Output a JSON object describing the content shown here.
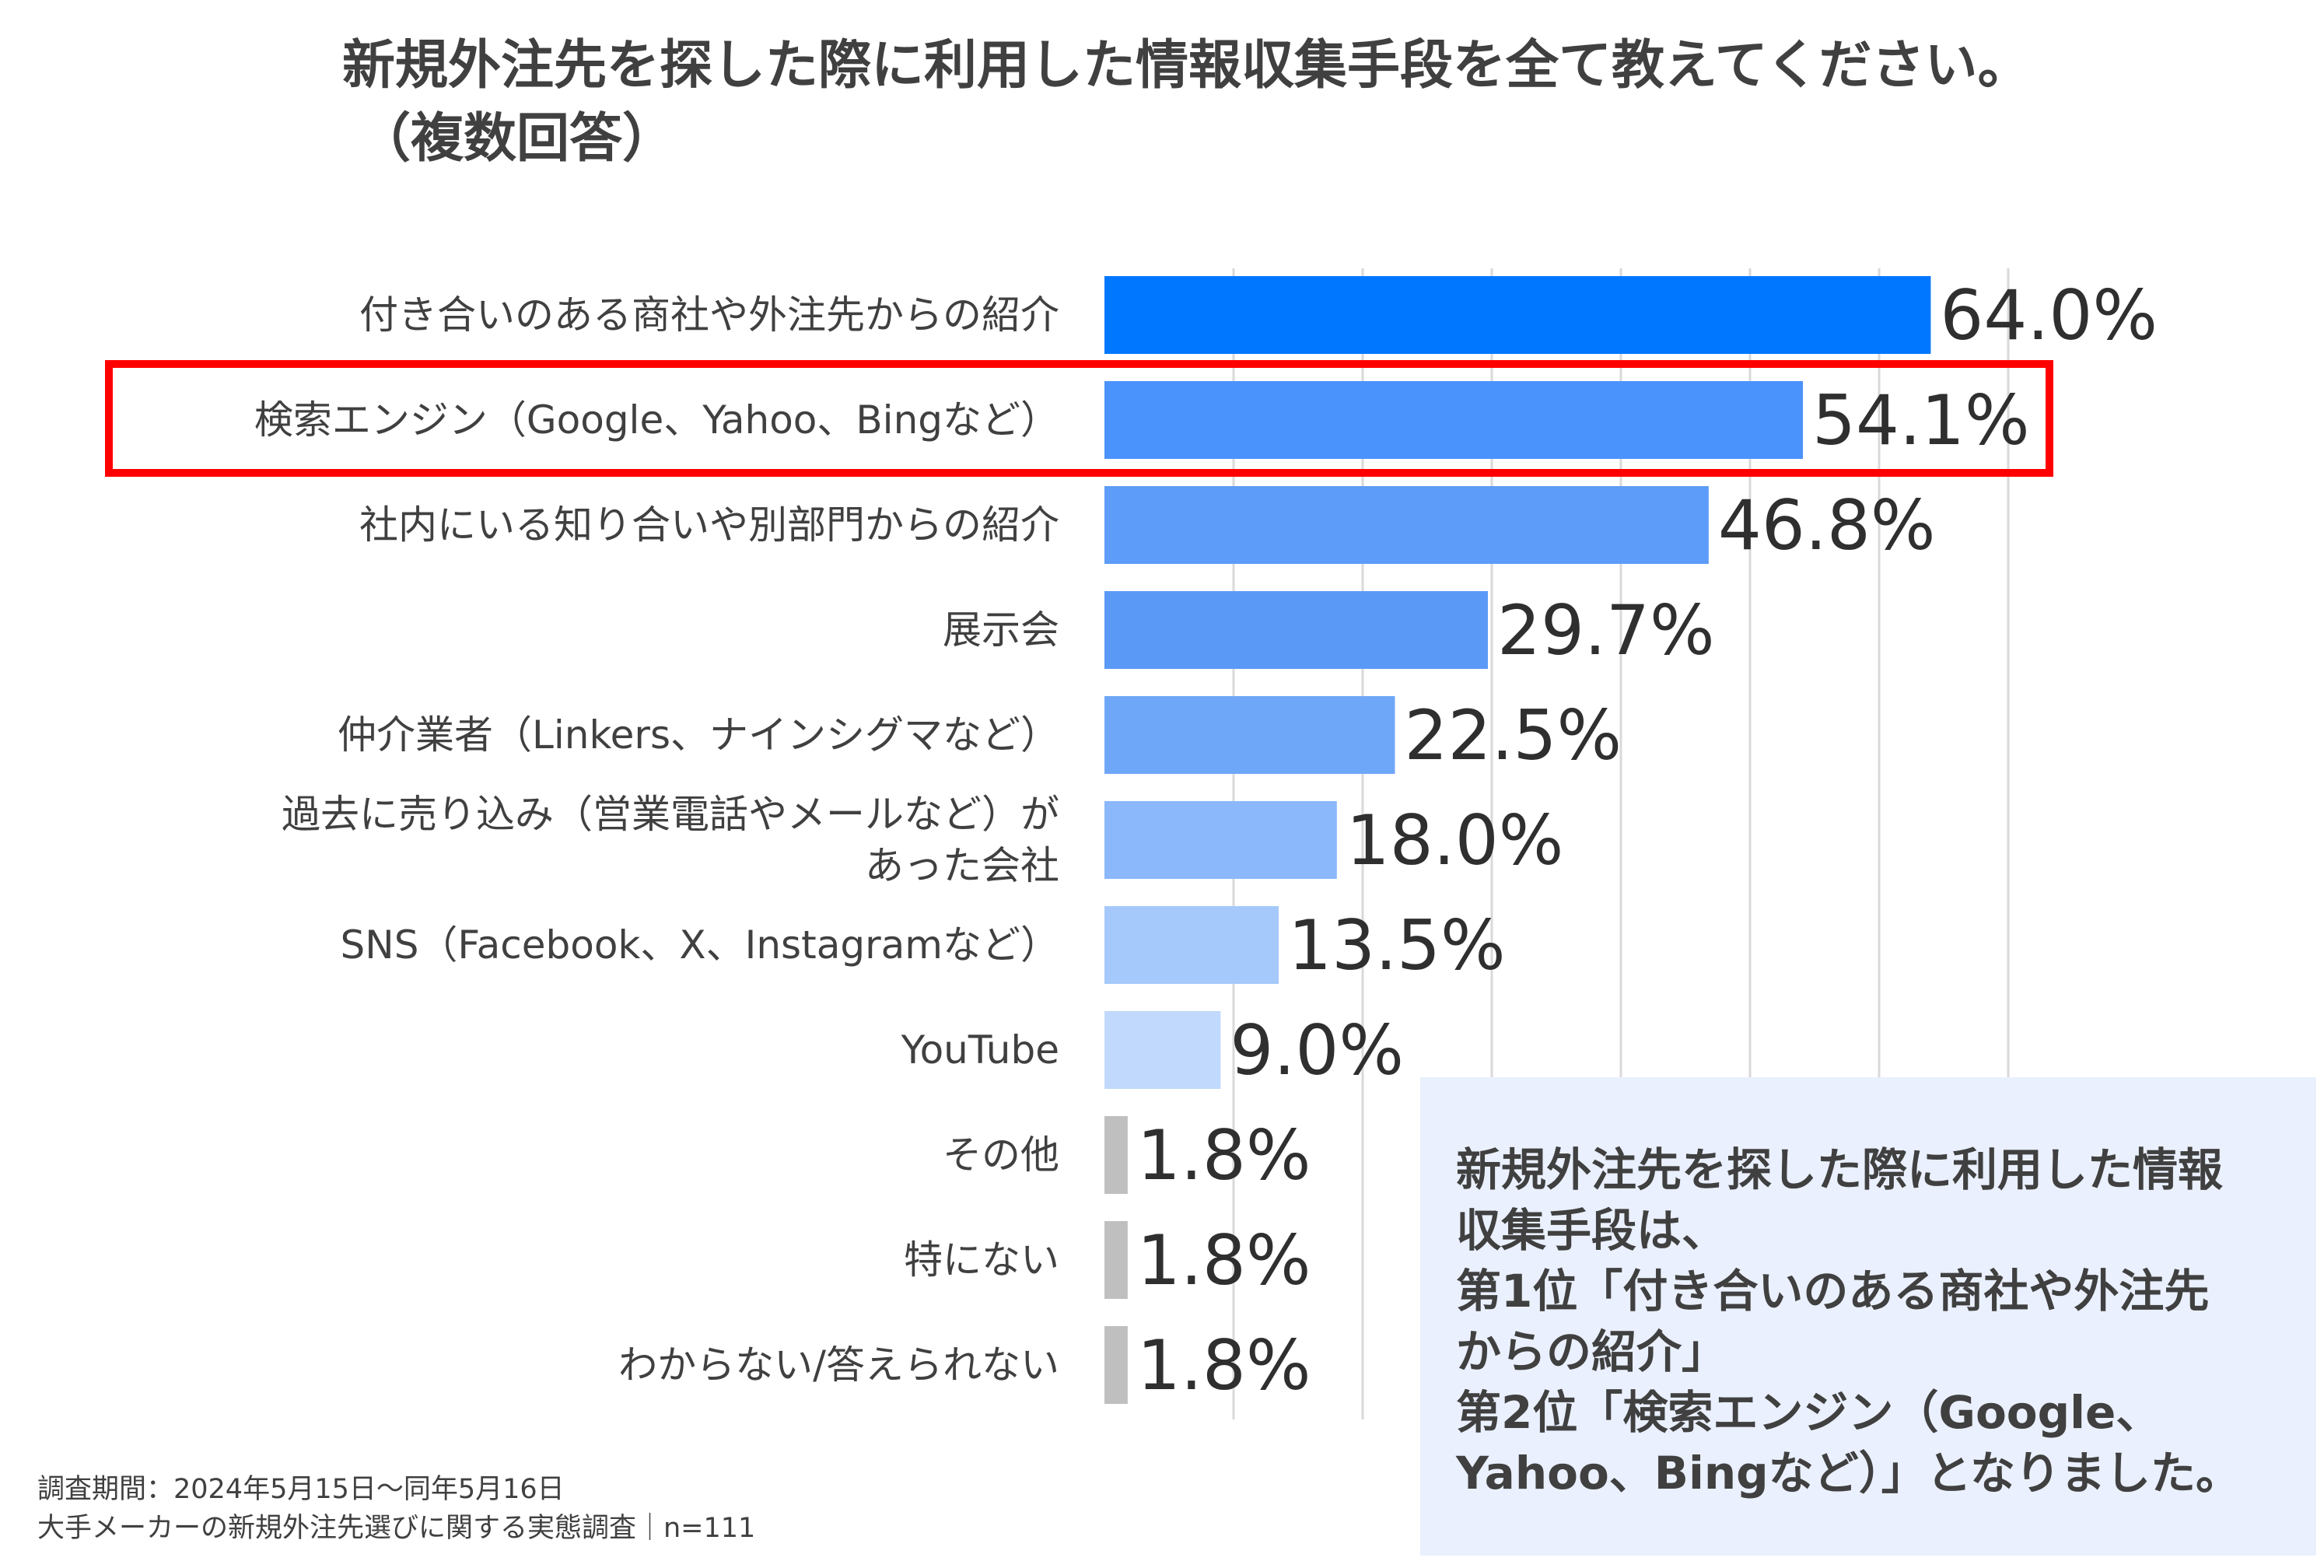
{
  "title": {
    "line1": "新規外注先を探した際に利用した情報収集手段を全て教えてください。",
    "line2": "（複数回答）"
  },
  "chart_data": {
    "type": "bar",
    "orientation": "horizontal",
    "title": "新規外注先を探した際に利用した情報収集手段を全て教えてください。（複数回答）",
    "categories": [
      [
        "付き合いのある商社や外注先からの紹介"
      ],
      [
        "検索エンジン（Google、Yahoo、Bingなど）"
      ],
      [
        "社内にいる知り合いや別部門からの紹介"
      ],
      [
        "展示会"
      ],
      [
        "仲介業者（Linkers、ナインシグマなど）"
      ],
      [
        "過去に売り込み（営業電話やメールなど）が",
        "あった会社"
      ],
      [
        "SNS（Facebook、X、Instagramなど）"
      ],
      [
        "YouTube"
      ],
      [
        "その他"
      ],
      [
        "特にない"
      ],
      [
        "わからない/答えられない"
      ]
    ],
    "values": [
      64.0,
      54.1,
      46.8,
      29.7,
      22.5,
      18.0,
      13.5,
      9.0,
      1.8,
      1.8,
      1.8
    ],
    "value_labels": [
      "64.0%",
      "54.1%",
      "46.8%",
      "29.7%",
      "22.5%",
      "18.0%",
      "13.5%",
      "9.0%",
      "1.8%",
      "1.8%",
      "1.8%"
    ],
    "colors": [
      "#0077ff",
      "#4b93fc",
      "#5d9cf8",
      "#5a99f6",
      "#6fa7f8",
      "#8bb8fa",
      "#a6c9fb",
      "#c1d9fc",
      "#bfbfbf",
      "#bfbfbf",
      "#bfbfbf"
    ],
    "xlim": [
      0,
      70
    ],
    "gridline_step": 10,
    "highlighted_index": 1,
    "highlight_color": "#ff0000"
  },
  "callout": {
    "lines": [
      "新規外注先を探した際に利用した情報",
      "収集手段は、",
      "第1位「付き合いのある商社や外注先",
      "からの紹介」",
      "第2位「検索エンジン（Google、",
      "Yahoo、Bingなど）」となりました。"
    ]
  },
  "footnote": {
    "line1": "調査期間：2024年5月15日～同年5月16日",
    "line2": "大手メーカーの新規外注先選びに関する実態調査｜n=111"
  }
}
